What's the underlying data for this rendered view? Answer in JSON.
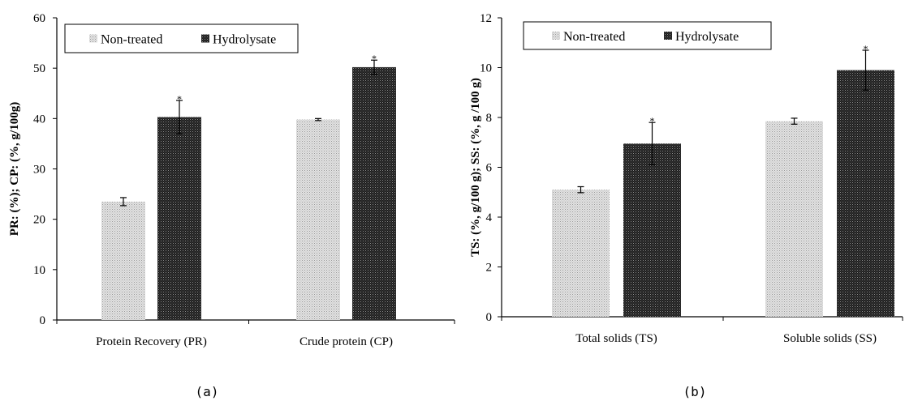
{
  "colors": {
    "non_treated": "#c8c8c8",
    "hydrolysate": "#2a2a2a",
    "axis": "#000000"
  },
  "chart_data": [
    {
      "type": "bar",
      "panel_label": "(a)",
      "ylabel": "PR: (%); CP: (%, g/100g)",
      "xlabel": "",
      "ylim": [
        0,
        60
      ],
      "yticks": [
        0,
        10,
        20,
        30,
        40,
        50,
        60
      ],
      "categories": [
        "Protein Recovery (PR)",
        "Crude protein (CP)"
      ],
      "legend_position": "top-left",
      "series": [
        {
          "name": "Non-treated",
          "values": [
            23.5,
            39.8
          ],
          "errors": [
            0.8,
            0.2
          ],
          "significant": [
            false,
            false
          ]
        },
        {
          "name": "Hydrolysate",
          "values": [
            40.3,
            50.2
          ],
          "errors": [
            3.3,
            1.4
          ],
          "significant": [
            true,
            true
          ]
        }
      ],
      "significance_marker": "*"
    },
    {
      "type": "bar",
      "panel_label": "(b)",
      "ylabel": "TS: (%, g/100 g); SS: (%, g /100 g)",
      "xlabel": "",
      "ylim": [
        0,
        12
      ],
      "yticks": [
        0,
        2,
        4,
        6,
        8,
        10,
        12
      ],
      "categories": [
        "Total solids (TS)",
        "Soluble solids (SS)"
      ],
      "legend_position": "top-left",
      "series": [
        {
          "name": "Non-treated",
          "values": [
            5.1,
            7.85
          ],
          "errors": [
            0.12,
            0.12
          ],
          "significant": [
            false,
            false
          ]
        },
        {
          "name": "Hydrolysate",
          "values": [
            6.95,
            9.9
          ],
          "errors": [
            0.85,
            0.8
          ],
          "significant": [
            true,
            true
          ]
        }
      ],
      "significance_marker": "*"
    }
  ]
}
